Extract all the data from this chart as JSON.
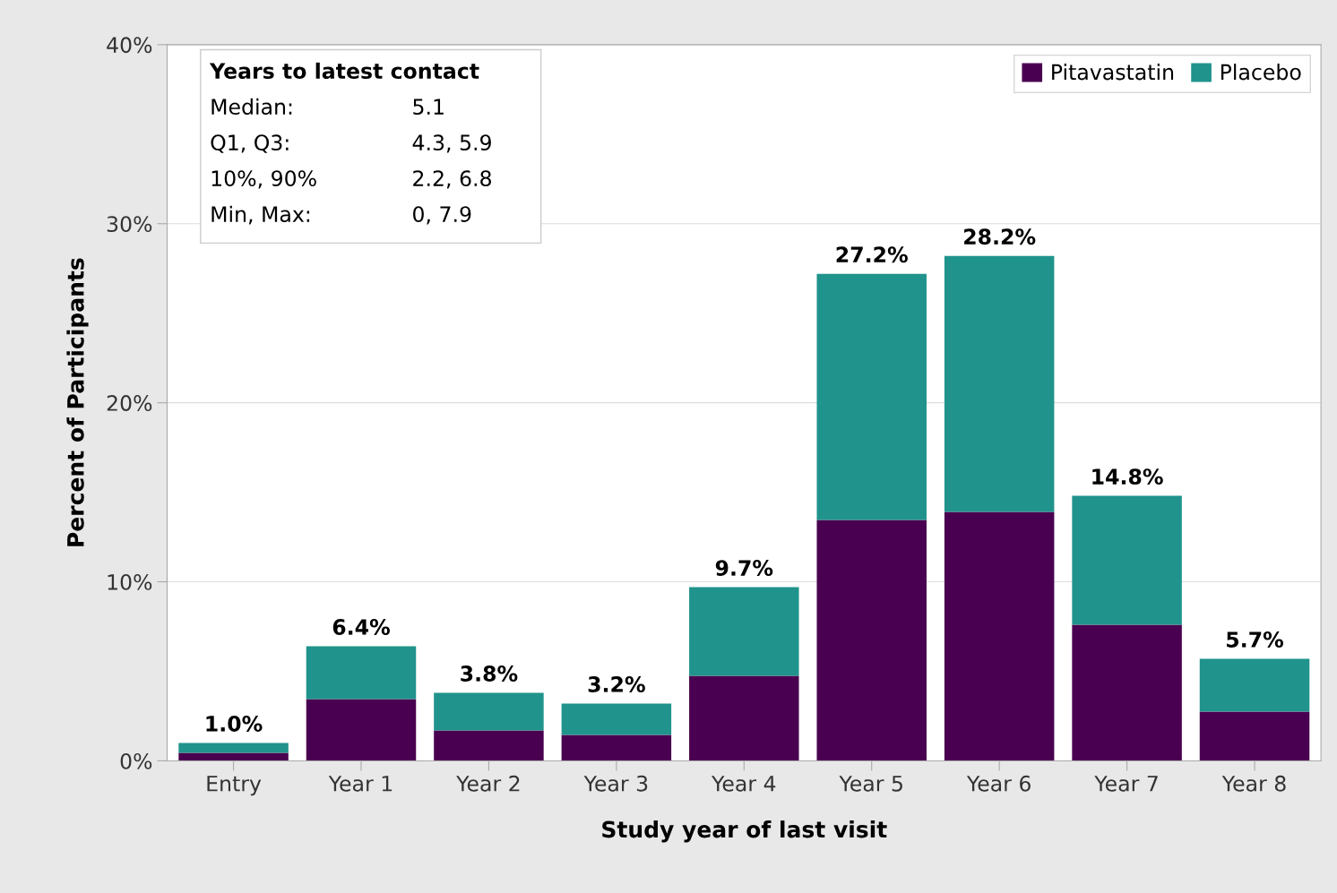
{
  "chart_data": {
    "type": "bar",
    "stacked": true,
    "xlabel": "Study year of last visit",
    "ylabel": "Percent of Participants",
    "categories": [
      "Entry",
      "Year 1",
      "Year 2",
      "Year 3",
      "Year 4",
      "Year 5",
      "Year 6",
      "Year 7",
      "Year 8"
    ],
    "series": [
      {
        "name": "Pitavastatin",
        "color": "#4a0050",
        "values": [
          0.45,
          3.45,
          1.7,
          1.45,
          4.75,
          13.45,
          13.9,
          7.6,
          2.75
        ]
      },
      {
        "name": "Placebo",
        "color": "#20938c",
        "values": [
          0.55,
          2.95,
          2.1,
          1.75,
          4.95,
          13.75,
          14.3,
          7.2,
          2.95
        ]
      }
    ],
    "totals": [
      "1.0%",
      "6.4%",
      "3.8%",
      "3.2%",
      "9.7%",
      "27.2%",
      "28.2%",
      "14.8%",
      "5.7%"
    ],
    "ylim": [
      0,
      40
    ],
    "yticks": [
      {
        "value": 0,
        "label": "0%"
      },
      {
        "value": 10,
        "label": "10%"
      },
      {
        "value": 20,
        "label": "20%"
      },
      {
        "value": 30,
        "label": "30%"
      },
      {
        "value": 40,
        "label": "40%"
      }
    ],
    "grid": "y",
    "legend": "top right",
    "annotations": [
      "Years to latest contact",
      "Median:",
      "5.1",
      "Q1, Q3:",
      "4.3, 5.9",
      "10%, 90%",
      "2.2, 6.8",
      "Min, Max:",
      "0, 7.9"
    ]
  }
}
